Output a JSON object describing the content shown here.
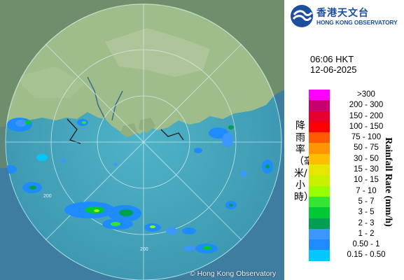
{
  "map": {
    "copyright": "© Hong Kong Observatory",
    "range_label": "200"
  },
  "header": {
    "logo_cn": "香港天文台",
    "logo_en": "HONG KONG OBSERVATORY",
    "time": "06:06 HKT",
    "date": "12-06-2025"
  },
  "legend": {
    "title_cn": "降雨率（毫米/小時）",
    "title_en": "Rainfall Rate (mm/h)",
    "items": [
      {
        "range": ">300",
        "color": "#ff00ff"
      },
      {
        "range": "200 - 300",
        "color": "#c8006e"
      },
      {
        "range": "150 - 200",
        "color": "#e6002d"
      },
      {
        "range": "100 - 150",
        "color": "#ff0000"
      },
      {
        "range": "75 - 100",
        "color": "#ff5a00"
      },
      {
        "range": "50 - 75",
        "color": "#ff9600"
      },
      {
        "range": "30 - 50",
        "color": "#ffbe00"
      },
      {
        "range": "15 - 30",
        "color": "#e6e600"
      },
      {
        "range": "10 - 15",
        "color": "#c8f000"
      },
      {
        "range": "7 - 10",
        "color": "#96ff00"
      },
      {
        "range": "5 - 7",
        "color": "#32e632"
      },
      {
        "range": "3 - 5",
        "color": "#00c832"
      },
      {
        "range": "2 - 3",
        "color": "#00a050"
      },
      {
        "range": "1 - 2",
        "color": "#3c96ff"
      },
      {
        "range": "0.50 - 1",
        "color": "#1e8cff"
      },
      {
        "range": "0.15 - 0.50",
        "color": "#00c8ff"
      }
    ]
  }
}
